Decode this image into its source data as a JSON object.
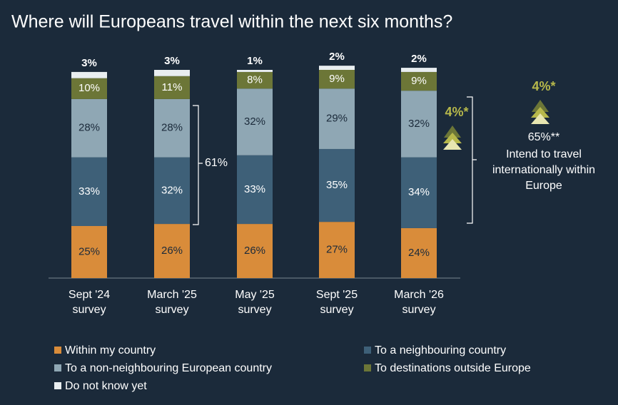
{
  "chart_data": {
    "type": "stacked-bar",
    "title": "Where will Europeans travel within the next six months?",
    "categories": [
      "Sept '24 survey",
      "March '25 survey",
      "May '25 survey",
      "Sept '25 survey",
      "March '26 survey"
    ],
    "series": [
      {
        "name": "Within my country",
        "color": "#d98c3a",
        "label_color": "#1b2a3a",
        "values": [
          25,
          26,
          26,
          27,
          24
        ],
        "value_labels": [
          "25%",
          "26%",
          "26%",
          "27%",
          "24%"
        ]
      },
      {
        "name": "To a neighbouring country",
        "color": "#3e6078",
        "label_color": "#ffffff",
        "values": [
          33,
          32,
          33,
          35,
          34
        ],
        "value_labels": [
          "33%",
          "32%",
          "33%",
          "35%",
          "34%"
        ]
      },
      {
        "name": "To a non-neighbouring European country",
        "color": "#8fa7b4",
        "label_color": "#1b2a3a",
        "values": [
          28,
          28,
          32,
          29,
          32
        ],
        "value_labels": [
          "28%",
          "28%",
          "32%",
          "29%",
          "32%"
        ]
      },
      {
        "name": "To destinations outside Europe",
        "color": "#6c7637",
        "label_color": "#ffffff",
        "values": [
          10,
          11,
          8,
          9,
          9
        ],
        "value_labels": [
          "10%",
          "11%",
          "8%",
          "9%",
          "9%"
        ]
      },
      {
        "name": "Do not know yet",
        "color": "#e9eef0",
        "label_color": "#ffffff",
        "values": [
          3,
          3,
          1,
          2,
          2
        ],
        "value_labels": [
          "3%",
          "3%",
          "1%",
          "2%",
          "2%"
        ]
      }
    ],
    "annotations": {
      "bracket_label": "61%",
      "growth_label_bar": "4%*",
      "growth_label_side": "4%*",
      "intent_value": "65%**",
      "intent_text": "Intend to travel internationally within Europe"
    }
  }
}
